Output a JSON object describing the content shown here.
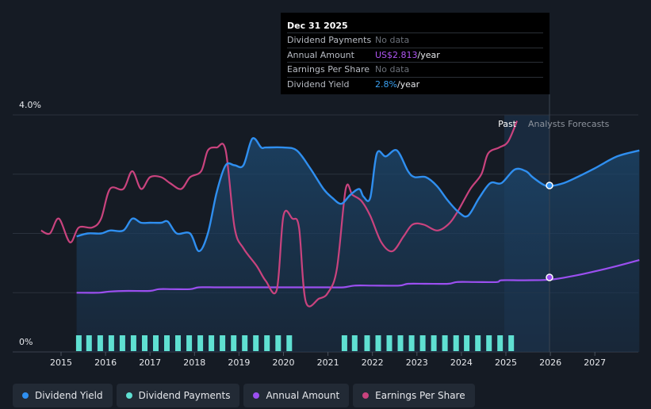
{
  "tooltip": {
    "date": "Dec 31 2025",
    "rows": [
      {
        "label": "Dividend Payments",
        "value": "No data"
      },
      {
        "label": "Annual Amount",
        "value": "US$2.813",
        "unit": "/year"
      },
      {
        "label": "Earnings Per Share",
        "value": "No data"
      },
      {
        "label": "Dividend Yield",
        "value": "2.8%",
        "unit": "/year"
      }
    ]
  },
  "labels": {
    "past": "Past",
    "forecast": "Analysts Forecasts"
  },
  "legend": [
    {
      "label": "Dividend Yield",
      "color": "#2f8ff0"
    },
    {
      "label": "Dividend Payments",
      "color": "#5fe0d2"
    },
    {
      "label": "Annual Amount",
      "color": "#9b4ff0"
    },
    {
      "label": "Earnings Per Share",
      "color": "#c9437e"
    }
  ],
  "chart_data": {
    "type": "line",
    "y_axis": {
      "min": 0,
      "max": 4.0,
      "unit": "%",
      "labels": [
        {
          "value": 4.0,
          "text": "4.0%"
        },
        {
          "value": 0,
          "text": "0%"
        }
      ]
    },
    "x_axis": {
      "min": 2014.5,
      "max": 2028.0,
      "ticks": [
        2015,
        2016,
        2017,
        2018,
        2019,
        2020,
        2021,
        2022,
        2023,
        2024,
        2025,
        2026,
        2027
      ],
      "tick_labels": [
        "2015",
        "2016",
        "2017",
        "2018",
        "2019",
        "2020",
        "2021",
        "2022",
        "2023",
        "2024",
        "2025",
        "2026",
        "2027"
      ]
    },
    "forecast_start": 2025.5,
    "highlight_date": 2026.0,
    "series": [
      {
        "name": "Dividend Yield",
        "color": "#2f8ff0",
        "points": [
          [
            2015.35,
            1.95
          ],
          [
            2015.6,
            2.0
          ],
          [
            2015.9,
            2.0
          ],
          [
            2016.1,
            2.05
          ],
          [
            2016.4,
            2.05
          ],
          [
            2016.6,
            2.25
          ],
          [
            2016.8,
            2.18
          ],
          [
            2017.0,
            2.18
          ],
          [
            2017.25,
            2.18
          ],
          [
            2017.4,
            2.2
          ],
          [
            2017.6,
            2.0
          ],
          [
            2017.9,
            2.0
          ],
          [
            2018.1,
            1.7
          ],
          [
            2018.3,
            2.0
          ],
          [
            2018.5,
            2.7
          ],
          [
            2018.7,
            3.15
          ],
          [
            2018.9,
            3.15
          ],
          [
            2019.1,
            3.15
          ],
          [
            2019.3,
            3.6
          ],
          [
            2019.5,
            3.45
          ],
          [
            2019.6,
            3.45
          ],
          [
            2020.0,
            3.45
          ],
          [
            2020.3,
            3.4
          ],
          [
            2020.6,
            3.1
          ],
          [
            2020.9,
            2.75
          ],
          [
            2021.1,
            2.6
          ],
          [
            2021.3,
            2.5
          ],
          [
            2021.5,
            2.65
          ],
          [
            2021.7,
            2.75
          ],
          [
            2021.8,
            2.62
          ],
          [
            2021.95,
            2.6
          ],
          [
            2022.1,
            3.35
          ],
          [
            2022.3,
            3.3
          ],
          [
            2022.55,
            3.4
          ],
          [
            2022.8,
            3.05
          ],
          [
            2022.95,
            2.95
          ],
          [
            2023.2,
            2.95
          ],
          [
            2023.45,
            2.8
          ],
          [
            2023.7,
            2.55
          ],
          [
            2023.95,
            2.35
          ],
          [
            2024.15,
            2.3
          ],
          [
            2024.4,
            2.6
          ],
          [
            2024.65,
            2.85
          ],
          [
            2024.9,
            2.85
          ],
          [
            2025.2,
            3.08
          ],
          [
            2025.45,
            3.05
          ],
          [
            2025.6,
            2.95
          ],
          [
            2025.85,
            2.82
          ],
          [
            2026.0,
            2.8
          ],
          [
            2026.3,
            2.85
          ],
          [
            2026.6,
            2.95
          ],
          [
            2027.0,
            3.1
          ],
          [
            2027.5,
            3.3
          ],
          [
            2028.0,
            3.4
          ]
        ]
      },
      {
        "name": "Earnings Per Share",
        "color": "#c9437e",
        "points": [
          [
            2014.55,
            2.05
          ],
          [
            2014.75,
            2.0
          ],
          [
            2014.95,
            2.25
          ],
          [
            2015.2,
            1.85
          ],
          [
            2015.4,
            2.1
          ],
          [
            2015.7,
            2.1
          ],
          [
            2015.9,
            2.25
          ],
          [
            2016.1,
            2.75
          ],
          [
            2016.4,
            2.75
          ],
          [
            2016.6,
            3.05
          ],
          [
            2016.8,
            2.75
          ],
          [
            2017.0,
            2.95
          ],
          [
            2017.25,
            2.95
          ],
          [
            2017.45,
            2.85
          ],
          [
            2017.7,
            2.75
          ],
          [
            2017.9,
            2.95
          ],
          [
            2018.15,
            3.05
          ],
          [
            2018.3,
            3.4
          ],
          [
            2018.5,
            3.45
          ],
          [
            2018.7,
            3.4
          ],
          [
            2018.9,
            2.1
          ],
          [
            2019.1,
            1.75
          ],
          [
            2019.4,
            1.45
          ],
          [
            2019.6,
            1.2
          ],
          [
            2019.85,
            1.05
          ],
          [
            2020.0,
            2.3
          ],
          [
            2020.2,
            2.25
          ],
          [
            2020.35,
            2.1
          ],
          [
            2020.5,
            0.85
          ],
          [
            2020.8,
            0.9
          ],
          [
            2021.0,
            1.0
          ],
          [
            2021.2,
            1.4
          ],
          [
            2021.4,
            2.75
          ],
          [
            2021.55,
            2.65
          ],
          [
            2021.75,
            2.55
          ],
          [
            2021.95,
            2.3
          ],
          [
            2022.2,
            1.85
          ],
          [
            2022.45,
            1.7
          ],
          [
            2022.7,
            1.95
          ],
          [
            2022.9,
            2.15
          ],
          [
            2023.15,
            2.15
          ],
          [
            2023.45,
            2.05
          ],
          [
            2023.7,
            2.15
          ],
          [
            2023.9,
            2.35
          ],
          [
            2024.2,
            2.75
          ],
          [
            2024.45,
            3.0
          ],
          [
            2024.6,
            3.35
          ],
          [
            2024.85,
            3.45
          ],
          [
            2025.05,
            3.55
          ],
          [
            2025.25,
            3.9
          ]
        ]
      },
      {
        "name": "Annual Amount",
        "color": "#9b4ff0",
        "points": [
          [
            2015.35,
            1.0
          ],
          [
            2015.85,
            1.0
          ],
          [
            2016.1,
            1.02
          ],
          [
            2016.5,
            1.03
          ],
          [
            2017.0,
            1.03
          ],
          [
            2017.2,
            1.06
          ],
          [
            2017.5,
            1.06
          ],
          [
            2017.9,
            1.06
          ],
          [
            2018.1,
            1.09
          ],
          [
            2018.5,
            1.09
          ],
          [
            2019.0,
            1.09
          ],
          [
            2019.5,
            1.09
          ],
          [
            2020.0,
            1.09
          ],
          [
            2020.5,
            1.09
          ],
          [
            2021.0,
            1.09
          ],
          [
            2021.35,
            1.09
          ],
          [
            2021.6,
            1.12
          ],
          [
            2022.0,
            1.12
          ],
          [
            2022.6,
            1.12
          ],
          [
            2022.8,
            1.15
          ],
          [
            2023.2,
            1.15
          ],
          [
            2023.7,
            1.15
          ],
          [
            2023.9,
            1.18
          ],
          [
            2024.3,
            1.18
          ],
          [
            2024.8,
            1.18
          ],
          [
            2024.9,
            1.21
          ],
          [
            2025.4,
            1.21
          ],
          [
            2026.0,
            1.22
          ],
          [
            2026.5,
            1.28
          ],
          [
            2027.0,
            1.36
          ],
          [
            2027.5,
            1.45
          ],
          [
            2028.0,
            1.55
          ]
        ]
      },
      {
        "name": "Dividend Payments",
        "color": "#5fe0d2",
        "type": "bar",
        "x": [
          2015.4,
          2015.63,
          2015.88,
          2016.13,
          2016.38,
          2016.63,
          2016.88,
          2017.13,
          2017.38,
          2017.63,
          2017.88,
          2018.13,
          2018.38,
          2018.63,
          2018.88,
          2019.13,
          2019.38,
          2019.63,
          2019.88,
          2020.13,
          2021.37,
          2021.6,
          2021.88,
          2022.13,
          2022.38,
          2022.63,
          2022.88,
          2023.13,
          2023.38,
          2023.63,
          2023.88,
          2024.12,
          2024.37,
          2024.62,
          2024.87,
          2025.12
        ],
        "values": [
          1,
          1,
          1,
          1,
          1,
          1,
          1,
          1,
          1,
          1,
          1,
          1,
          1,
          1,
          1,
          1,
          1,
          1,
          1,
          1,
          1,
          1,
          1,
          1,
          1,
          1,
          1,
          1,
          1,
          1,
          1,
          1,
          1,
          1,
          1,
          1
        ]
      }
    ]
  }
}
